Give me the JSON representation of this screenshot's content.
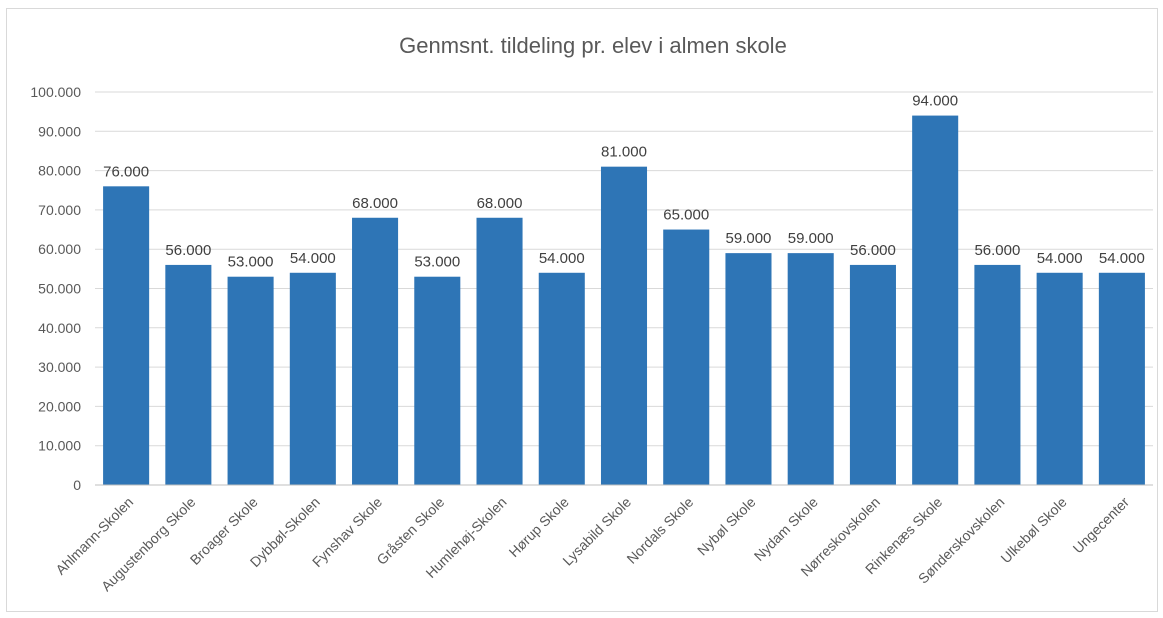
{
  "chart_data": {
    "type": "bar",
    "title": "Genmsnt. tildeling pr. elev i almen skole",
    "categories": [
      "Ahlmann-Skolen",
      "Augustenborg Skole",
      "Broager Skole",
      "Dybbøl-Skolen",
      "Fynshav Skole",
      "Gråsten Skole",
      "Humlehøj-Skolen",
      "Hørup Skole",
      "Lysabild Skole",
      "Nordals Skole",
      "Nybøl Skole",
      "Nydam Skole",
      "Nørreskovskolen",
      "Rinkenæs Skole",
      "Sønderskovskolen",
      "Ulkebøl Skole",
      "Ungecenter"
    ],
    "values": [
      76000,
      56000,
      53000,
      54000,
      68000,
      53000,
      68000,
      54000,
      81000,
      65000,
      59000,
      59000,
      56000,
      94000,
      56000,
      54000,
      54000
    ],
    "value_labels": [
      "76.000",
      "56.000",
      "53.000",
      "54.000",
      "68.000",
      "53.000",
      "68.000",
      "54.000",
      "81.000",
      "65.000",
      "59.000",
      "59.000",
      "56.000",
      "94.000",
      "56.000",
      "54.000",
      "54.000"
    ],
    "y_ticks": [
      0,
      10000,
      20000,
      30000,
      40000,
      50000,
      60000,
      70000,
      80000,
      90000,
      100000
    ],
    "y_tick_labels": [
      "0",
      "10.000",
      "20.000",
      "30.000",
      "40.000",
      "50.000",
      "60.000",
      "70.000",
      "80.000",
      "90.000",
      "100.000"
    ],
    "ylim": [
      0,
      100000
    ],
    "xlabel": "",
    "ylabel": "",
    "grid": true,
    "legend": "none",
    "bar_color": "#2e75b6"
  }
}
